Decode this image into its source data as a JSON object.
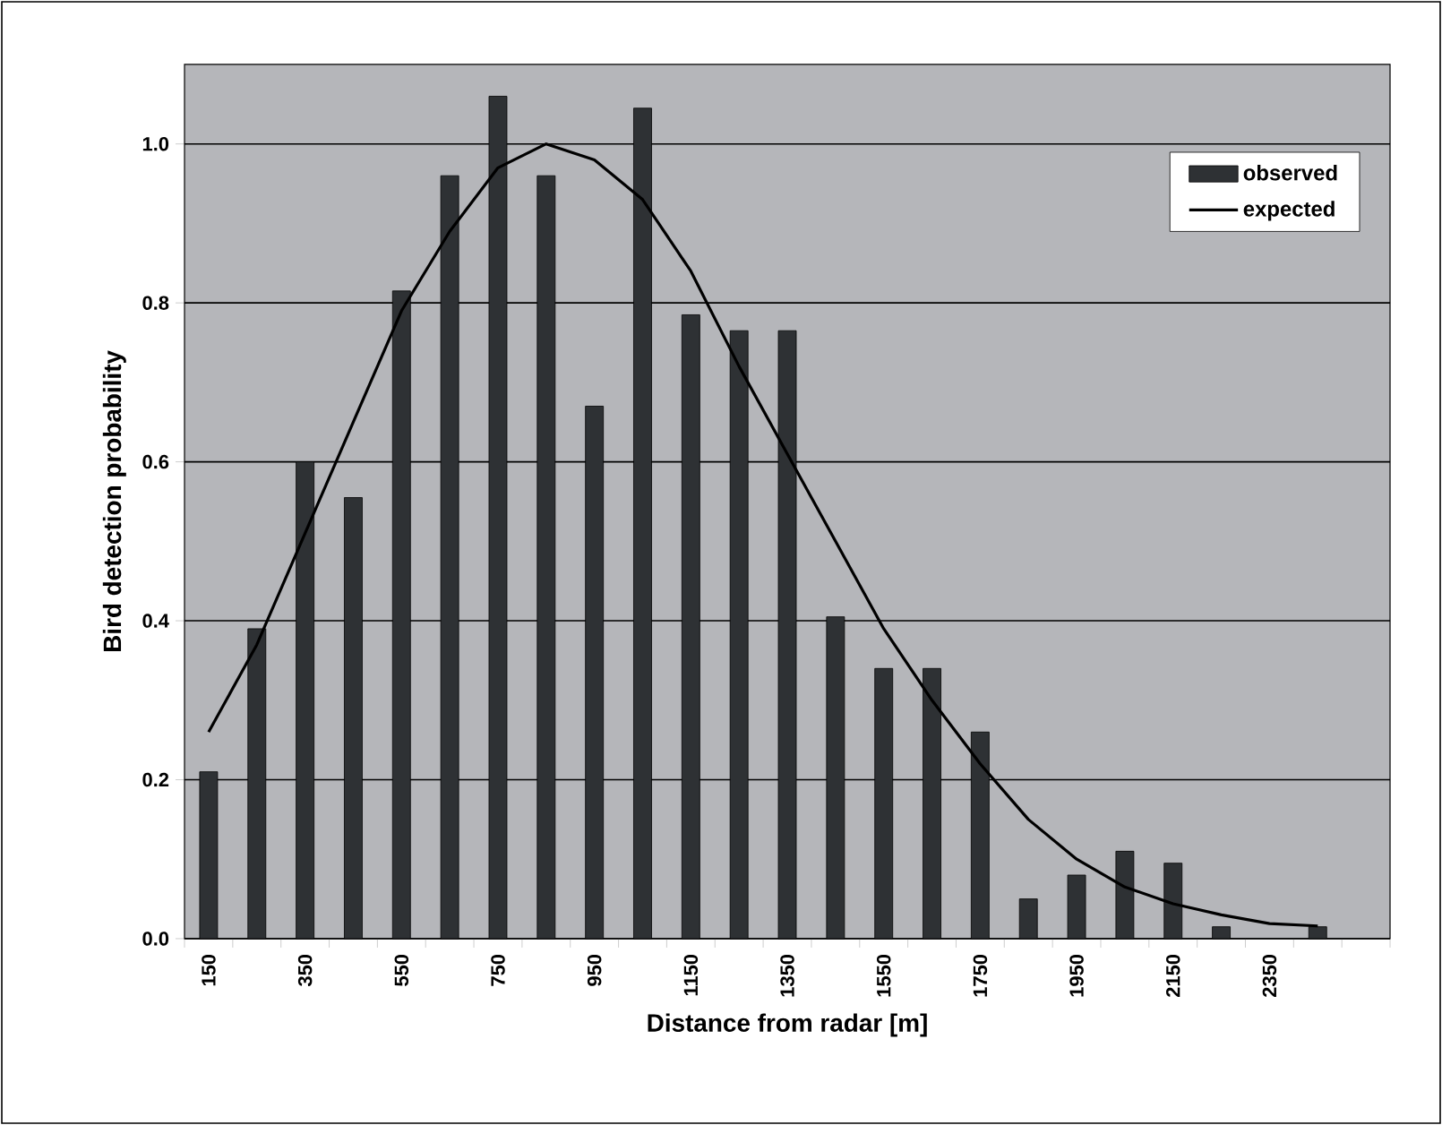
{
  "chart_data": {
    "type": "bar",
    "xlabel": "Distance from radar [m]",
    "ylabel": "Bird detection probability",
    "categories": [
      "150",
      null,
      "350",
      null,
      "550",
      null,
      "750",
      null,
      "950",
      null,
      "1150",
      null,
      "1350",
      null,
      "1550",
      null,
      "1750",
      null,
      "1950",
      null,
      "2150",
      null,
      "2350",
      null,
      null
    ],
    "series": [
      {
        "name": "observed",
        "color": "#2e3134",
        "values": [
          0.21,
          0.39,
          0.6,
          0.555,
          0.815,
          0.96,
          1.06,
          0.96,
          0.67,
          1.045,
          0.785,
          0.765,
          0.765,
          0.405,
          0.34,
          0.34,
          0.26,
          0.05,
          0.08,
          0.11,
          0.095,
          0.015,
          null,
          0.015,
          null
        ]
      },
      {
        "name": "expected",
        "type": "line",
        "color": "#000000",
        "values": [
          0.26,
          0.37,
          0.51,
          0.65,
          0.79,
          0.89,
          0.97,
          1.0,
          0.98,
          0.93,
          0.84,
          0.72,
          0.61,
          0.5,
          0.39,
          0.3,
          0.22,
          0.15,
          0.1,
          0.065,
          0.044,
          0.03,
          0.019,
          0.016,
          null
        ]
      }
    ],
    "ylim": [
      0,
      1.1
    ],
    "yticks": [
      {
        "value": 0,
        "label": "0.0"
      },
      {
        "value": 0.2,
        "label": "0.2"
      },
      {
        "value": 0.4,
        "label": "0.4"
      },
      {
        "value": 0.6,
        "label": "0.6"
      },
      {
        "value": 0.8,
        "label": "0.8"
      },
      {
        "value": 1.0,
        "label": "1.0"
      }
    ],
    "grid": "y",
    "legend": "top right"
  }
}
